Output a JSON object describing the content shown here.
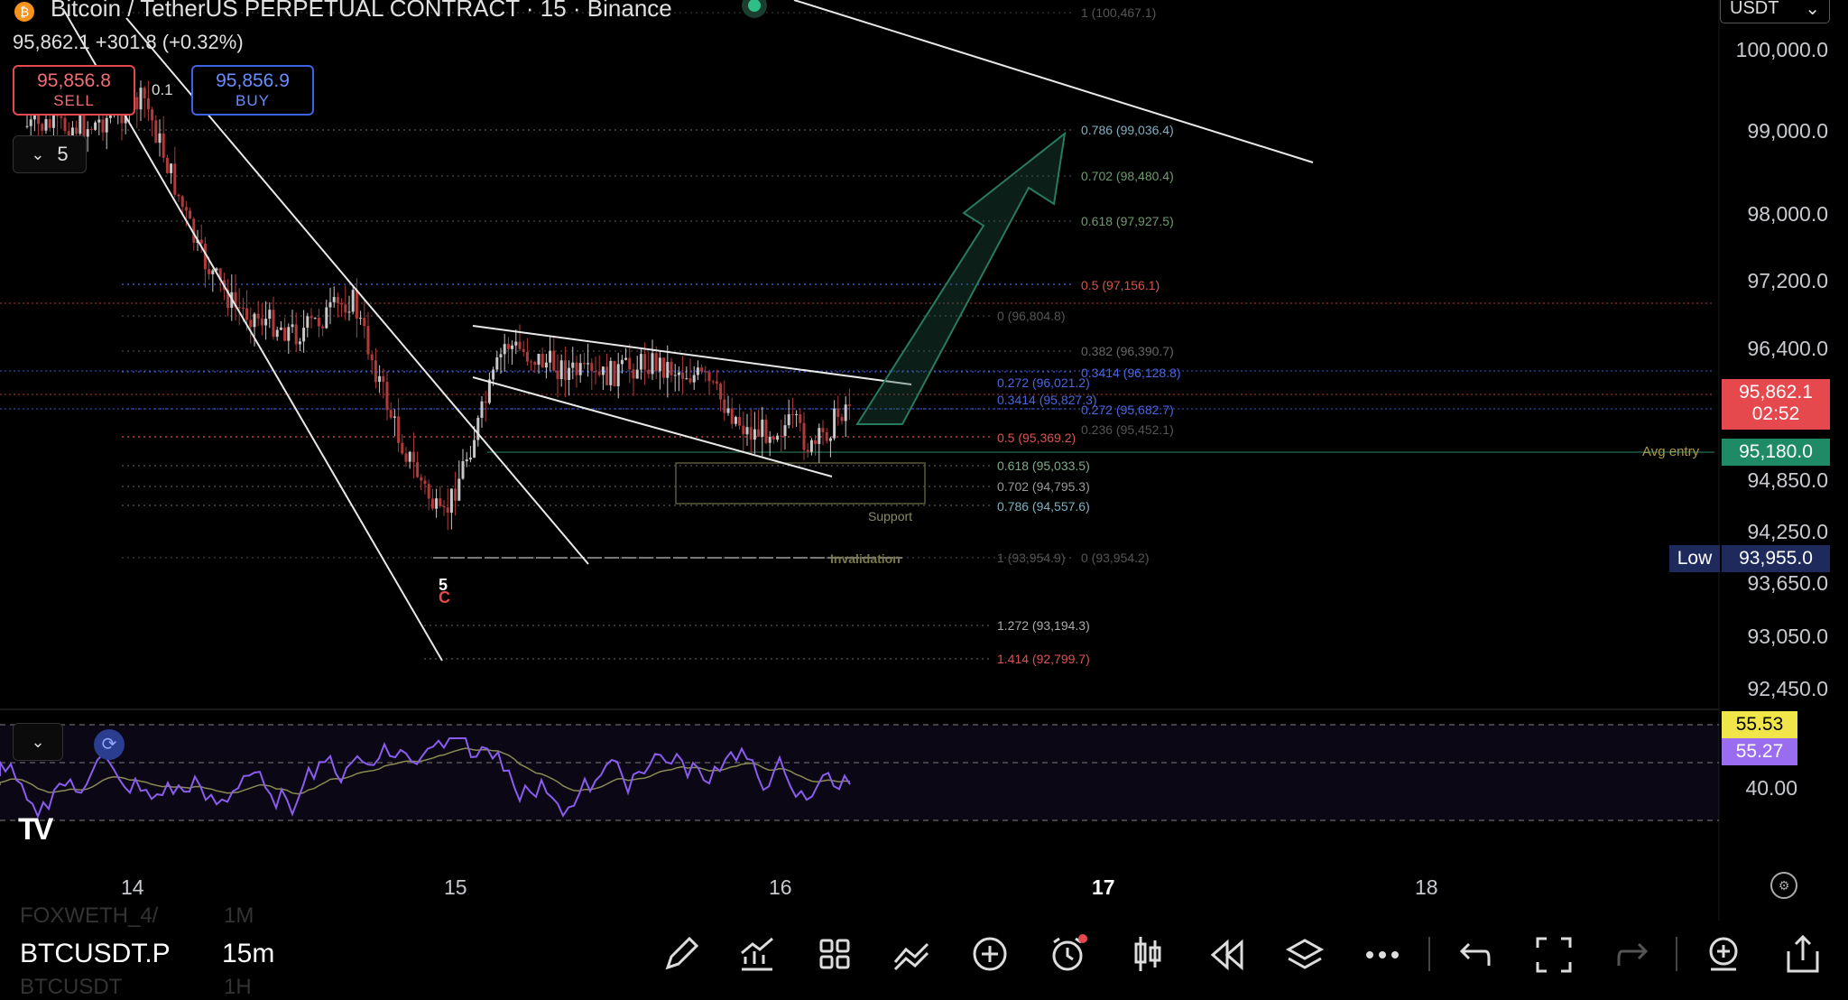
{
  "header": {
    "title": "Bitcoin / TetherUS PERPETUAL CONTRACT · 15 · Binance",
    "quote": "95,862.1 +301.8 (+0.32%)",
    "currency": "USDT"
  },
  "trade": {
    "sell_price": "95,856.8",
    "sell_label": "SELL",
    "spread": "0.1",
    "buy_price": "95,856.9",
    "buy_label": "BUY"
  },
  "layers_count": "5",
  "price_axis": [
    "100,000.0",
    "99,000.0",
    "98,000.0",
    "97,200.0",
    "96,400.0",
    "94,850.0",
    "94,250.0",
    "93,650.0",
    "93,050.0",
    "92,450.0"
  ],
  "badges": {
    "last_price": "95,862.1",
    "countdown": "02:52",
    "avg_entry_price": "95,180.0",
    "avg_entry_label": "Avg entry",
    "low_label": "Low",
    "low_price": "93,955.0"
  },
  "fib_labels": {
    "f1": "1 (100,467.1)",
    "f786": "0.786 (99,036.4)",
    "f702": "0.702 (98,480.4)",
    "f618": "0.618 (97,927.5)",
    "f5": "0.5 (97,156.1)",
    "f0": "0 (96,804.8)",
    "f382": "0.382 (96,390.7)",
    "f3414a": "0.3414 (96,128.8)",
    "f272a": "0.272 (96,021.2)",
    "f3414b": "0.3414 (95,827.3)",
    "f272b": "0.272 (95,682.7)",
    "f236": "0.236 (95,452.1)",
    "f5b": "0.5 (95,369.2)",
    "f618b": "0.618 (95,033.5)",
    "f702b": "0.702 (94,795.3)",
    "f786b": "0.786 (94,557.6)",
    "f1b": "1 (93,954.9)",
    "f0b": "0 (93,954.2)",
    "f1272": "1.272 (93,194.3)",
    "f1414": "1.414 (92,799.7)"
  },
  "annotations": {
    "support": "Support",
    "invalidation": "Invalidation",
    "wave5": "5",
    "waveC": "C"
  },
  "rsi": {
    "value1": "55.53",
    "value2": "55.27",
    "level": "40.00"
  },
  "time_axis": [
    "14",
    "15",
    "16",
    "17",
    "18"
  ],
  "bottom": {
    "symbol": "BTCUSDT.P",
    "interval": "15m",
    "ghost_top": "FOXWETH_4/",
    "ghost_top_interval": "1M",
    "ghost_bottom": "BTCUSDT",
    "ghost_bottom_interval": "1H"
  },
  "colors": {
    "sell": "#e5484d",
    "buy": "#3b63e0",
    "rsi_line": "#8a5cf0",
    "avg_entry": "#1f8a66",
    "last_price": "#e5484d",
    "low": "#1e2a5c"
  }
}
